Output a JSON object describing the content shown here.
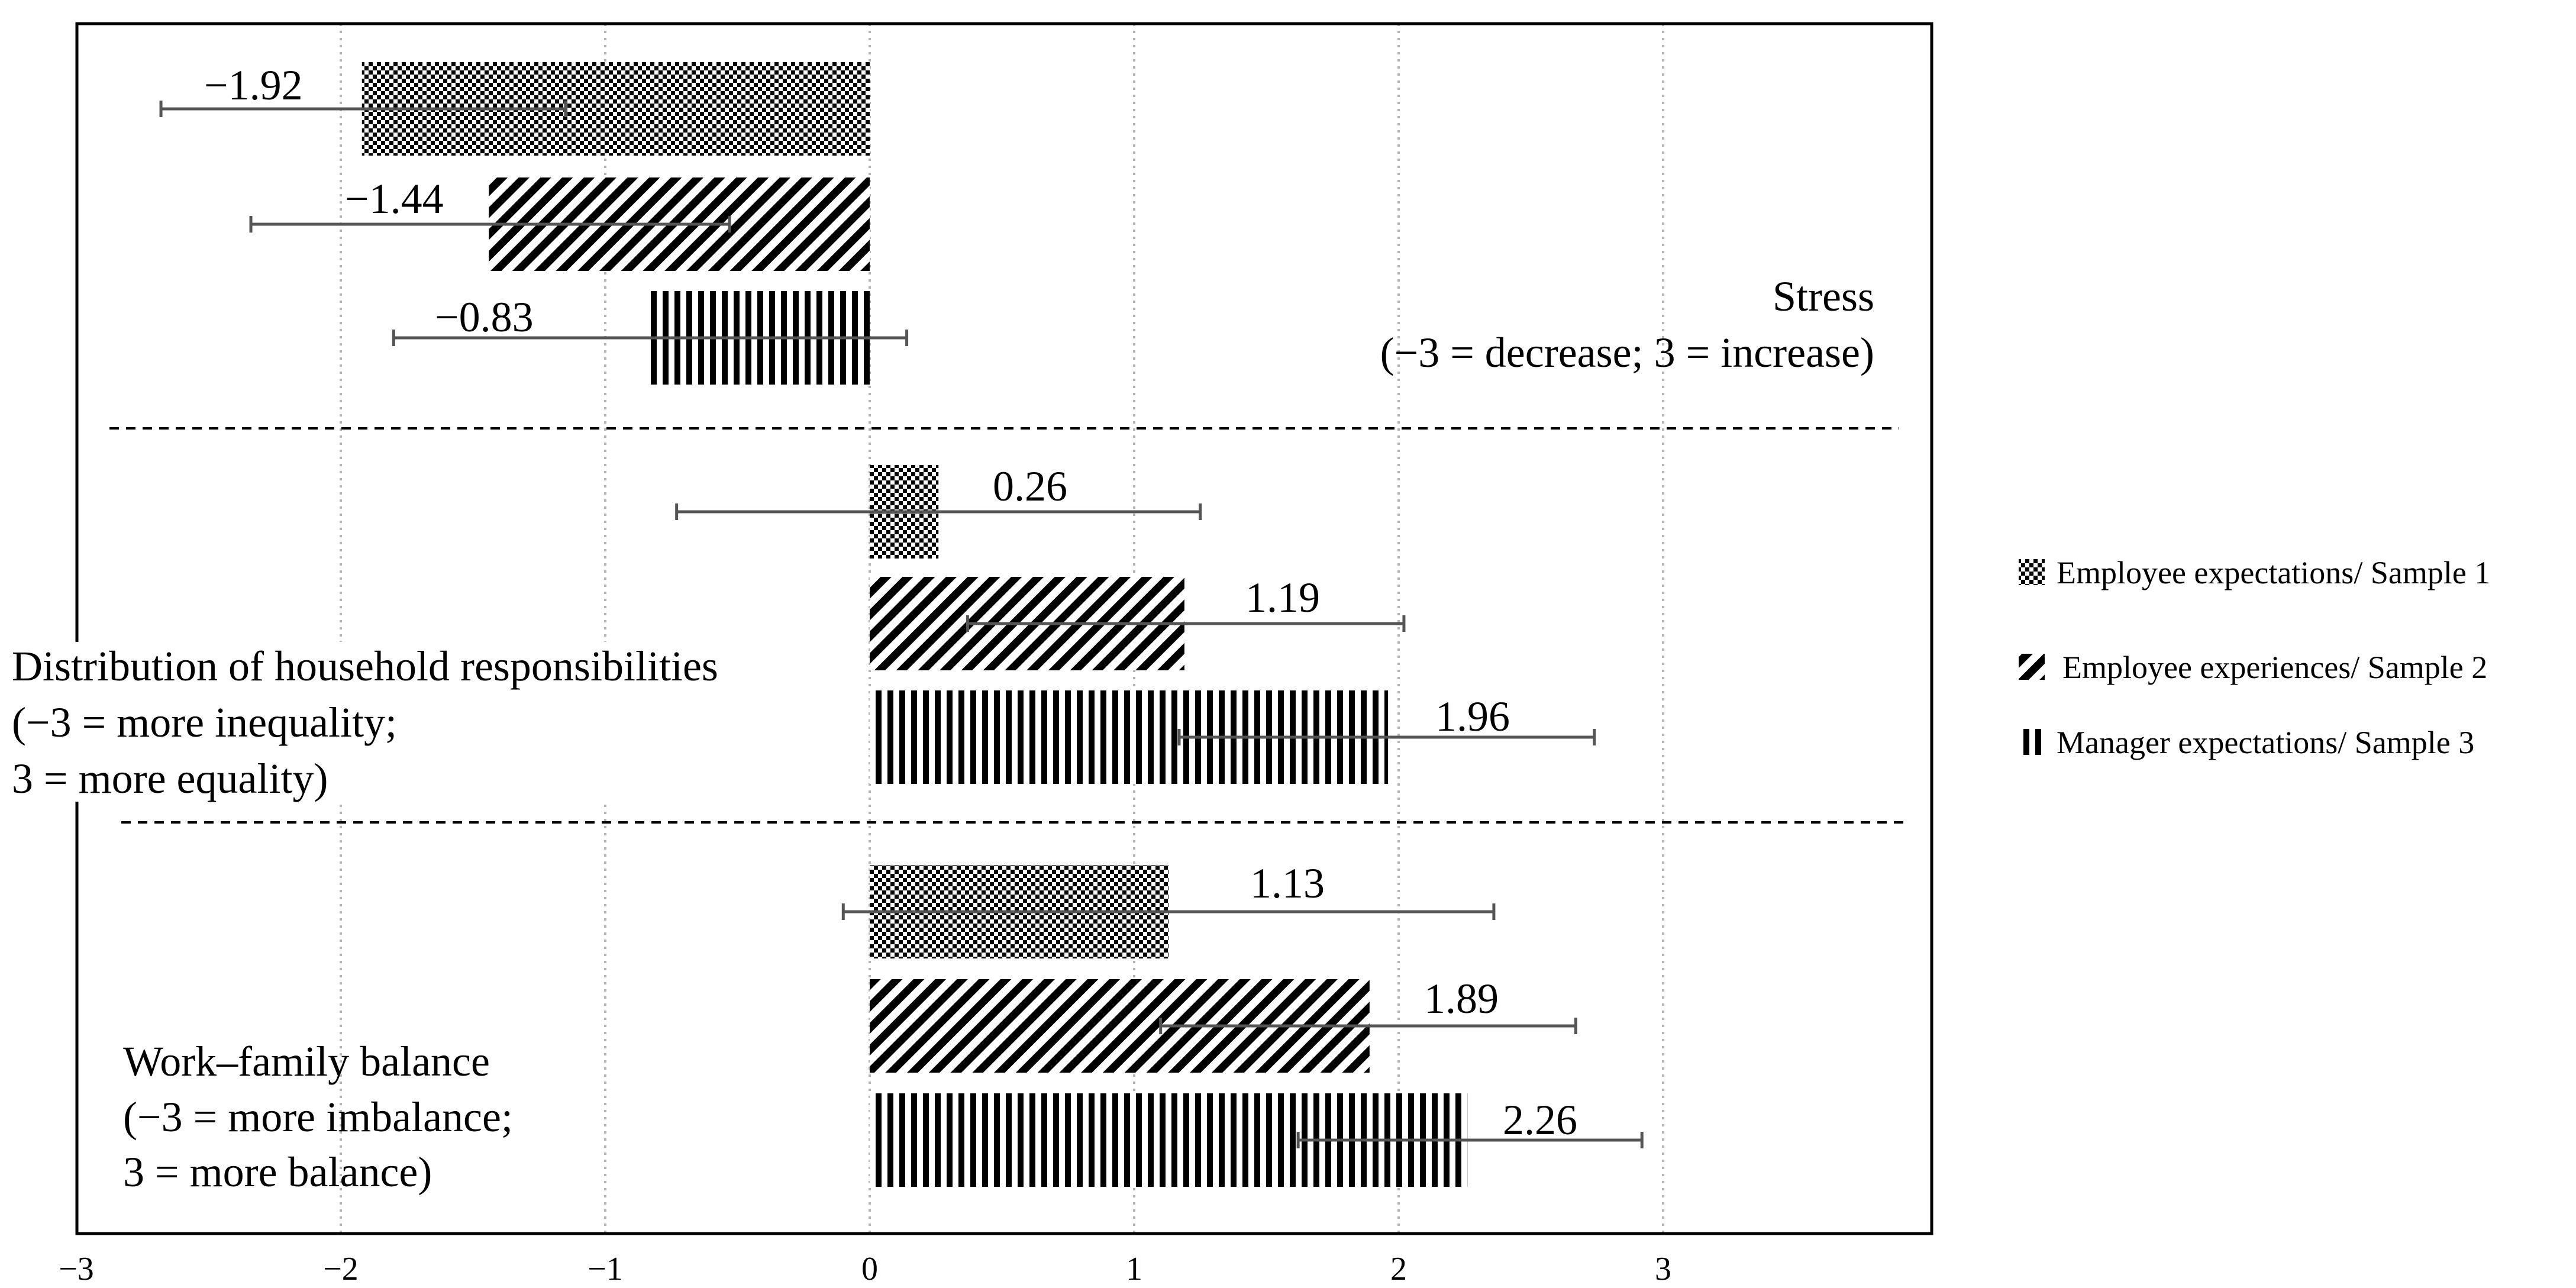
{
  "colors": {
    "ink": "#000000",
    "grid": "#b5b5b5",
    "errorbar": "#555555",
    "background": "#ffffff"
  },
  "chart_data": {
    "type": "bar",
    "orientation": "horizontal",
    "xlim": [
      -3,
      3.9
    ],
    "x_ticks": [
      -3,
      -2,
      -1,
      0,
      1,
      2,
      3
    ],
    "x_tick_labels": [
      "−3",
      "−2",
      "−1",
      "0",
      "1",
      "2",
      "3"
    ],
    "gridlines": "vertical dotted",
    "legend_position": "right",
    "series": [
      {
        "name": "Employee expectations/ Sample 1",
        "pattern": "checker"
      },
      {
        "name": "Employee experiences/ Sample 2",
        "pattern": "diagonal"
      },
      {
        "name": "Manager expectations/ Sample 3",
        "pattern": "vertical"
      }
    ],
    "groups": [
      {
        "title": "Stress",
        "subtitle": "(−3 = decrease; 3 = increase)",
        "bars": [
          {
            "series": 0,
            "value": -1.92,
            "label": "−1.92",
            "err_low": -2.68,
            "err_high": -1.15
          },
          {
            "series": 1,
            "value": -1.44,
            "label": "−1.44",
            "err_low": -2.34,
            "err_high": -0.53
          },
          {
            "series": 2,
            "value": -0.83,
            "label": "−0.83",
            "err_low": -1.8,
            "err_high": 0.14
          }
        ]
      },
      {
        "title": "Distribution of household responsibilities",
        "subtitle": "(−3 = more inequality;",
        "subtitle2": "3 = more equality)",
        "bars": [
          {
            "series": 0,
            "value": 0.26,
            "label": "0.26",
            "err_low": -0.73,
            "err_high": 1.25
          },
          {
            "series": 1,
            "value": 1.19,
            "label": "1.19",
            "err_low": 0.37,
            "err_high": 2.02
          },
          {
            "series": 2,
            "value": 1.96,
            "label": "1.96",
            "err_low": 1.17,
            "err_high": 2.74
          }
        ]
      },
      {
        "title": "Work–family balance",
        "subtitle": "(−3 = more imbalance;",
        "subtitle2": "3 = more balance)",
        "bars": [
          {
            "series": 0,
            "value": 1.13,
            "label": "1.13",
            "err_low": -0.1,
            "err_high": 2.36
          },
          {
            "series": 1,
            "value": 1.89,
            "label": "1.89",
            "err_low": 1.1,
            "err_high": 2.67
          },
          {
            "series": 2,
            "value": 2.26,
            "label": "2.26",
            "err_low": 1.62,
            "err_high": 2.92
          }
        ]
      }
    ]
  }
}
